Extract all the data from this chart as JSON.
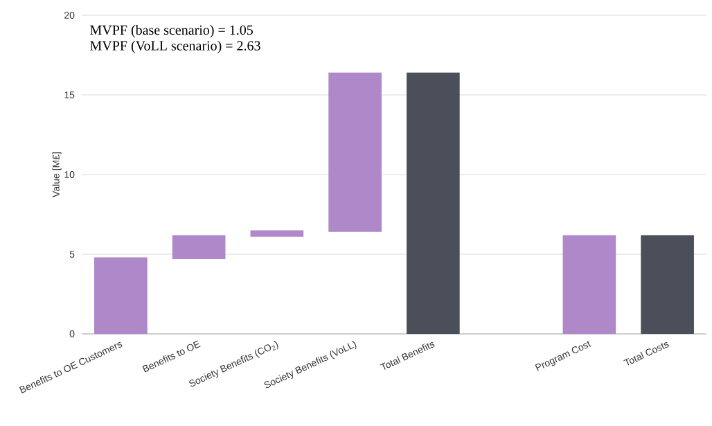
{
  "chart_data": {
    "type": "bar",
    "categories": [
      "Benefits to OE Customers",
      "Benefits to OE",
      "Society Benefits (CO$_{2}$)",
      "Society Benefits (VoLL)",
      "Total Benefits",
      null,
      "Program Cost",
      "Total Costs"
    ],
    "values": [
      4.8,
      1.5,
      0.4,
      10.0,
      16.4,
      null,
      6.2,
      6.2
    ],
    "base": [
      0,
      4.7,
      6.1,
      6.4,
      0,
      null,
      0,
      0
    ],
    "colors": [
      "#ae88c9",
      "#ae88c9",
      "#ae88c9",
      "#ae88c9",
      "#4b4f5a",
      null,
      "#ae88c9",
      "#4b4f5a"
    ],
    "ylabel": "Value [M£]",
    "ylim": [
      0,
      20
    ],
    "yticks": [
      0,
      5,
      10,
      15,
      20
    ],
    "grid": "y",
    "annotations": [
      "MVPF (base scenario) = 1.05",
      "MVPF (VoLL scenario) = 2.63"
    ]
  }
}
